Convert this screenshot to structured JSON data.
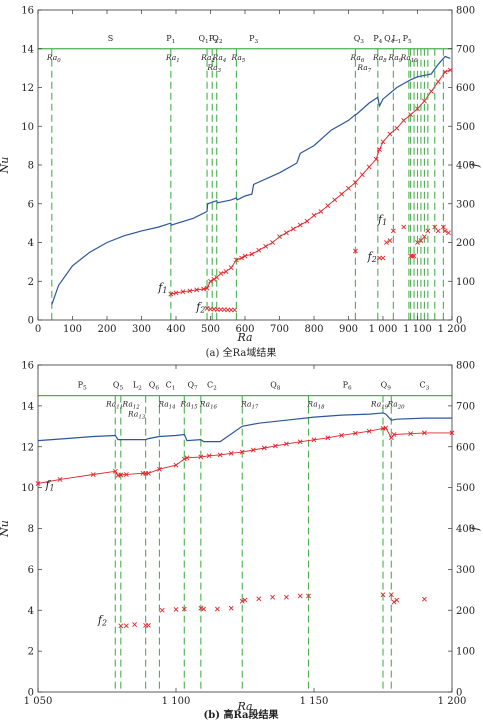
{
  "colors": {
    "nu": "#2b579a",
    "f": "#e0262b",
    "regime": "#4caf50",
    "axis": "#333333",
    "tick_label": "#333333"
  },
  "chart_data": [
    {
      "id": "a",
      "type": "line",
      "caption": "(a) 全Ra域结果",
      "xlabel": "Ra",
      "ylabel_left": "Nu",
      "ylabel_right": "f",
      "xlim": [
        0,
        1200
      ],
      "ylim_left": [
        0,
        16
      ],
      "ylim_right": [
        0,
        800
      ],
      "x_ticks": [
        0,
        100,
        200,
        300,
        400,
        500,
        600,
        700,
        800,
        900,
        1000,
        1100,
        1200
      ],
      "x_tick_labels": [
        "0",
        "100",
        "200",
        "300",
        "400",
        "500",
        "600",
        "700",
        "800",
        "900",
        "1 000",
        "1 100",
        "1 200"
      ],
      "y_left_ticks": [
        0,
        2,
        4,
        6,
        8,
        10,
        12,
        14,
        16
      ],
      "y_left_tick_labels": [
        "0",
        "2",
        "4",
        "6",
        "8",
        "10",
        "12",
        "14",
        "16"
      ],
      "y_right_ticks": [
        0,
        100,
        200,
        300,
        400,
        500,
        600,
        700,
        800
      ],
      "y_right_tick_labels": [
        "0",
        "100",
        "200",
        "300",
        "400",
        "500",
        "600",
        "700",
        "800"
      ],
      "regime_line_y": 14,
      "vlines": [
        40,
        385,
        490,
        505,
        518,
        575,
        920,
        985,
        1030,
        1075,
        1080,
        1090,
        1100,
        1110,
        1120,
        1130,
        1150,
        1175
      ],
      "regime_labels": [
        {
          "text": "S",
          "x": 210
        },
        {
          "text": "P1",
          "x": 385
        },
        {
          "text": "Q1",
          "x": 480
        },
        {
          "text": "P2",
          "x": 508
        },
        {
          "text": "Q2",
          "x": 520
        },
        {
          "text": "P3",
          "x": 625
        },
        {
          "text": "Q3",
          "x": 930
        },
        {
          "text": "P4",
          "x": 985
        },
        {
          "text": "Q4",
          "x": 1018
        },
        {
          "text": "L1",
          "x": 1040
        },
        {
          "text": "P5",
          "x": 1070
        }
      ],
      "ra_labels": [
        {
          "text": "Ra0",
          "x": 40,
          "row": 1
        },
        {
          "text": "Ra1",
          "x": 385,
          "row": 1
        },
        {
          "text": "Ra2",
          "x": 487,
          "row": 1
        },
        {
          "text": "Ra3",
          "x": 505,
          "row": 2
        },
        {
          "text": "Ra4",
          "x": 520,
          "row": 1
        },
        {
          "text": "Ra5",
          "x": 575,
          "row": 1
        },
        {
          "text": "Ra6",
          "x": 920,
          "row": 1
        },
        {
          "text": "Ra7",
          "x": 940,
          "row": 2
        },
        {
          "text": "Ra8",
          "x": 985,
          "row": 1
        },
        {
          "text": "Ra9",
          "x": 1030,
          "row": 1
        },
        {
          "text": "Ra10",
          "x": 1070,
          "row": 1
        }
      ],
      "series": [
        {
          "name": "Nu",
          "axis": "left",
          "style": "line",
          "x": [
            40,
            60,
            100,
            150,
            200,
            250,
            300,
            350,
            385,
            386,
            450,
            490,
            492,
            500,
            505,
            518,
            520,
            560,
            575,
            577,
            600,
            620,
            625,
            700,
            750,
            760,
            800,
            850,
            900,
            920,
            922,
            960,
            985,
            990,
            1000,
            1040,
            1060,
            1080,
            1100,
            1140,
            1160,
            1180,
            1195
          ],
          "y": [
            0.8,
            1.8,
            2.8,
            3.5,
            4.0,
            4.35,
            4.6,
            4.8,
            5.0,
            4.9,
            5.25,
            5.6,
            6.0,
            6.05,
            6.08,
            6.15,
            6.05,
            6.2,
            6.3,
            6.2,
            6.4,
            6.5,
            7.0,
            7.6,
            8.1,
            8.6,
            9.0,
            9.8,
            10.3,
            10.6,
            10.6,
            11.2,
            11.5,
            11.05,
            11.4,
            12.0,
            12.2,
            12.4,
            12.55,
            12.7,
            13.2,
            13.6,
            13.5
          ]
        },
        {
          "name": "f1",
          "axis": "right",
          "style": "line-markers",
          "x": [
            385,
            400,
            420,
            440,
            460,
            480,
            490,
            500,
            510,
            518,
            530,
            545,
            560,
            575,
            590,
            600,
            620,
            640,
            660,
            680,
            700,
            720,
            740,
            760,
            780,
            800,
            820,
            840,
            860,
            880,
            900,
            920,
            940,
            960,
            980,
            990,
            1000,
            1020,
            1040,
            1060,
            1080,
            1100,
            1120,
            1140,
            1160,
            1180,
            1195
          ],
          "y": [
            67,
            70,
            73,
            75,
            78,
            80,
            82,
            100,
            105,
            110,
            120,
            125,
            135,
            155,
            160,
            165,
            170,
            180,
            190,
            200,
            215,
            225,
            235,
            245,
            255,
            270,
            280,
            295,
            310,
            325,
            340,
            355,
            375,
            395,
            415,
            440,
            460,
            480,
            495,
            515,
            530,
            545,
            565,
            590,
            615,
            640,
            645
          ]
        },
        {
          "name": "f2",
          "axis": "right",
          "style": "markers",
          "x": [
            490,
            500,
            510,
            520,
            530,
            540,
            550,
            560,
            570,
            920,
            990,
            1000,
            1010,
            1020,
            1030,
            1060,
            1080,
            1085,
            1090,
            1100,
            1110,
            1120,
            1130,
            1150,
            1160,
            1175,
            1180,
            1190
          ],
          "y": [
            30,
            28,
            28,
            27,
            27,
            27,
            26,
            26,
            26,
            178,
            160,
            160,
            200,
            205,
            230,
            240,
            165,
            165,
            165,
            200,
            205,
            215,
            230,
            240,
            230,
            240,
            230,
            225
          ]
        }
      ],
      "annotations": [
        {
          "text": "f1",
          "x": 375,
          "y_right": 75
        },
        {
          "text": "f2",
          "x": 485,
          "y_right": 25
        },
        {
          "text": "f1",
          "x": 1012,
          "y_right": 250
        },
        {
          "text": "f2",
          "x": 982,
          "y_right": 155
        }
      ]
    },
    {
      "id": "b",
      "type": "line",
      "caption": "(b) 高Ra段结果",
      "xlabel": "Ra",
      "ylabel_left": "Nu",
      "ylabel_right": "f",
      "xlim": [
        1050,
        1200
      ],
      "ylim_left": [
        0,
        16
      ],
      "ylim_right": [
        0,
        800
      ],
      "x_ticks": [
        1050,
        1100,
        1150,
        1200
      ],
      "x_tick_labels": [
        "1 050",
        "1 100",
        "1 150",
        "1 200"
      ],
      "y_left_ticks": [
        0,
        2,
        4,
        6,
        8,
        10,
        12,
        14,
        16
      ],
      "y_left_tick_labels": [
        "0",
        "2",
        "4",
        "6",
        "8",
        "10",
        "12",
        "14",
        "16"
      ],
      "y_right_ticks": [
        0,
        100,
        200,
        300,
        400,
        500,
        600,
        700,
        800
      ],
      "y_right_tick_labels": [
        "0",
        "100",
        "200",
        "300",
        "400",
        "500",
        "600",
        "700",
        "800"
      ],
      "regime_line_y": 14.5,
      "vlines": [
        1078,
        1080,
        1089,
        1094,
        1103,
        1109,
        1124,
        1148,
        1175,
        1178
      ],
      "regime_labels": [
        {
          "text": "P5",
          "x": 1066
        },
        {
          "text": "Q5",
          "x": 1079
        },
        {
          "text": "L2",
          "x": 1086
        },
        {
          "text": "Q6",
          "x": 1092
        },
        {
          "text": "C1",
          "x": 1098
        },
        {
          "text": "Q7",
          "x": 1106
        },
        {
          "text": "C2",
          "x": 1113
        },
        {
          "text": "Q8",
          "x": 1136
        },
        {
          "text": "P6",
          "x": 1162
        },
        {
          "text": "Q9",
          "x": 1176
        },
        {
          "text": "C3",
          "x": 1190
        }
      ],
      "ra_labels": [
        {
          "text": "Ra11",
          "x": 1077,
          "row": 1
        },
        {
          "text": "Ra12",
          "x": 1083,
          "row": 1
        },
        {
          "text": "Ra13",
          "x": 1085,
          "row": 2
        },
        {
          "text": "Ra14",
          "x": 1096,
          "row": 1
        },
        {
          "text": "Ra15",
          "x": 1104,
          "row": 1
        },
        {
          "text": "Ra16",
          "x": 1111,
          "row": 1
        },
        {
          "text": "Ra17",
          "x": 1126,
          "row": 1
        },
        {
          "text": "Ra18",
          "x": 1150,
          "row": 1
        },
        {
          "text": "Ra19",
          "x": 1173,
          "row": 1
        },
        {
          "text": "Ra20",
          "x": 1179,
          "row": 1
        }
      ],
      "series": [
        {
          "name": "Nu",
          "axis": "left",
          "style": "line",
          "x": [
            1050,
            1060,
            1070,
            1078,
            1079,
            1089,
            1090,
            1094,
            1100,
            1103,
            1104,
            1109,
            1110,
            1116,
            1124,
            1130,
            1140,
            1150,
            1160,
            1170,
            1175,
            1176,
            1178,
            1180,
            1190,
            1200
          ],
          "y": [
            12.3,
            12.4,
            12.5,
            12.55,
            12.35,
            12.35,
            12.4,
            12.5,
            12.55,
            12.6,
            12.3,
            12.35,
            12.25,
            12.25,
            13.0,
            13.15,
            13.3,
            13.45,
            13.55,
            13.6,
            13.65,
            13.6,
            13.3,
            13.35,
            13.4,
            13.4
          ]
        },
        {
          "name": "f1",
          "axis": "right",
          "style": "line-markers",
          "x": [
            1050,
            1058,
            1070,
            1078,
            1079,
            1080,
            1082,
            1088,
            1089,
            1090,
            1094,
            1100,
            1103,
            1104,
            1109,
            1112,
            1116,
            1120,
            1124,
            1128,
            1132,
            1136,
            1140,
            1145,
            1150,
            1155,
            1160,
            1165,
            1170,
            1175,
            1176,
            1178,
            1179,
            1185,
            1190,
            1200
          ],
          "y": [
            510,
            520,
            532,
            540,
            530,
            531,
            532,
            535,
            535,
            535,
            545,
            555,
            570,
            573,
            575,
            578,
            580,
            584,
            587,
            592,
            597,
            602,
            607,
            612,
            617,
            622,
            628,
            633,
            638,
            645,
            646,
            622,
            630,
            632,
            634,
            634
          ]
        },
        {
          "name": "f2",
          "axis": "right",
          "style": "markers",
          "x": [
            1080,
            1082,
            1085,
            1089,
            1090,
            1095,
            1100,
            1103,
            1109,
            1110,
            1115,
            1120,
            1124,
            1125,
            1130,
            1135,
            1140,
            1145,
            1148,
            1175,
            1178,
            1179,
            1180,
            1190
          ],
          "y": [
            162,
            162,
            165,
            163,
            163,
            200,
            202,
            203,
            205,
            203,
            203,
            205,
            222,
            225,
            228,
            232,
            232,
            235,
            235,
            238,
            238,
            220,
            225,
            227
          ]
        }
      ],
      "annotations": [
        {
          "text": "f1",
          "x": 1056,
          "y_right": 498
        },
        {
          "text": "f2",
          "x": 1075,
          "y_right": 168
        }
      ]
    }
  ]
}
